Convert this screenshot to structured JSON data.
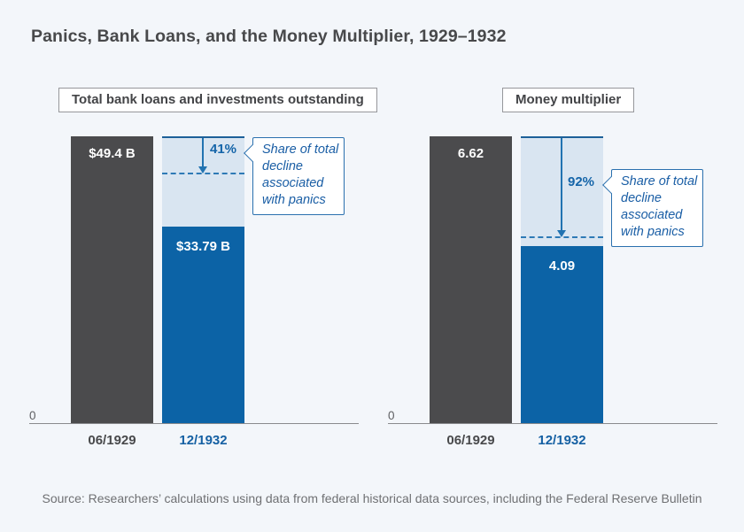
{
  "page": {
    "title": "Panics, Bank Loans, and the Money Multiplier, 1929–1932",
    "source": "Source: Researchers’ calculations using data from federal historical data sources, including the Federal Reserve Bulletin"
  },
  "colors": {
    "background": "#f3f6fa",
    "bar_dark": "#4b4b4d",
    "bar_blue": "#0c63a6",
    "decline_fill": "#d9e5f1",
    "accent_line": "#2273b1",
    "callout_border": "#2a70ae",
    "callout_text": "#1a5ea5",
    "axis_line": "#898a8d",
    "muted_text": "#6f7073"
  },
  "axis": {
    "zero_label": "0"
  },
  "callout_text": "Share of total\ndecline\nassociated\nwith panics",
  "chart_data": [
    {
      "type": "bar",
      "title": "Total bank loans and investments outstanding",
      "categories": [
        "06/1929",
        "12/1932"
      ],
      "values": [
        49.4,
        33.79
      ],
      "value_labels": [
        "$49.4 B",
        "$33.79 B"
      ],
      "decline_share_pct": 41,
      "decline_share_label": "41%",
      "annotation": "Share of total decline associated with panics",
      "ylim": [
        0,
        49.4
      ],
      "grid": false,
      "legend": "none"
    },
    {
      "type": "bar",
      "title": "Money multiplier",
      "categories": [
        "06/1929",
        "12/1932"
      ],
      "values": [
        6.62,
        4.09
      ],
      "value_labels": [
        "6.62",
        "4.09"
      ],
      "decline_share_pct": 92,
      "decline_share_label": "92%",
      "annotation": "Share of total decline associated with panics",
      "ylim": [
        0,
        6.62
      ],
      "grid": false,
      "legend": "none"
    }
  ]
}
